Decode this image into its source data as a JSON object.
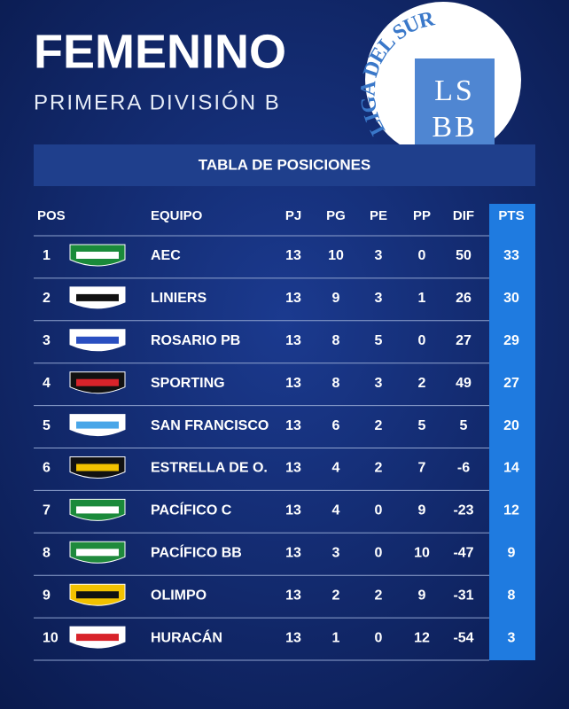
{
  "header": {
    "title": "FEMENINO",
    "subtitle": "PRIMERA DIVISIÓN B"
  },
  "logo": {
    "arc": "LIGA DEL SUR",
    "top": "LS",
    "bottom": "BB"
  },
  "table": {
    "title": "TABLA DE POSICIONES",
    "columns": [
      "POS",
      "EQUIPO",
      "PJ",
      "PG",
      "PE",
      "PP",
      "DIF",
      "PTS"
    ],
    "rows": [
      [
        1,
        "AEC",
        13,
        10,
        3,
        0,
        50,
        33
      ],
      [
        2,
        "LINIERS",
        13,
        9,
        3,
        1,
        26,
        30
      ],
      [
        3,
        "ROSARIO PB",
        13,
        8,
        5,
        0,
        27,
        29
      ],
      [
        4,
        "SPORTING",
        13,
        8,
        3,
        2,
        49,
        27
      ],
      [
        5,
        "SAN FRANCISCO",
        13,
        6,
        2,
        5,
        5,
        20
      ],
      [
        6,
        "ESTRELLA DE O.",
        13,
        4,
        2,
        7,
        -6,
        14
      ],
      [
        7,
        "PACÍFICO C",
        13,
        4,
        0,
        9,
        -23,
        12
      ],
      [
        8,
        "PACÍFICO BB",
        13,
        3,
        0,
        10,
        -47,
        9
      ],
      [
        9,
        "OLIMPO",
        13,
        2,
        2,
        9,
        -31,
        8
      ],
      [
        10,
        "HURACÁN",
        13,
        1,
        0,
        12,
        -54,
        3
      ]
    ]
  }
}
